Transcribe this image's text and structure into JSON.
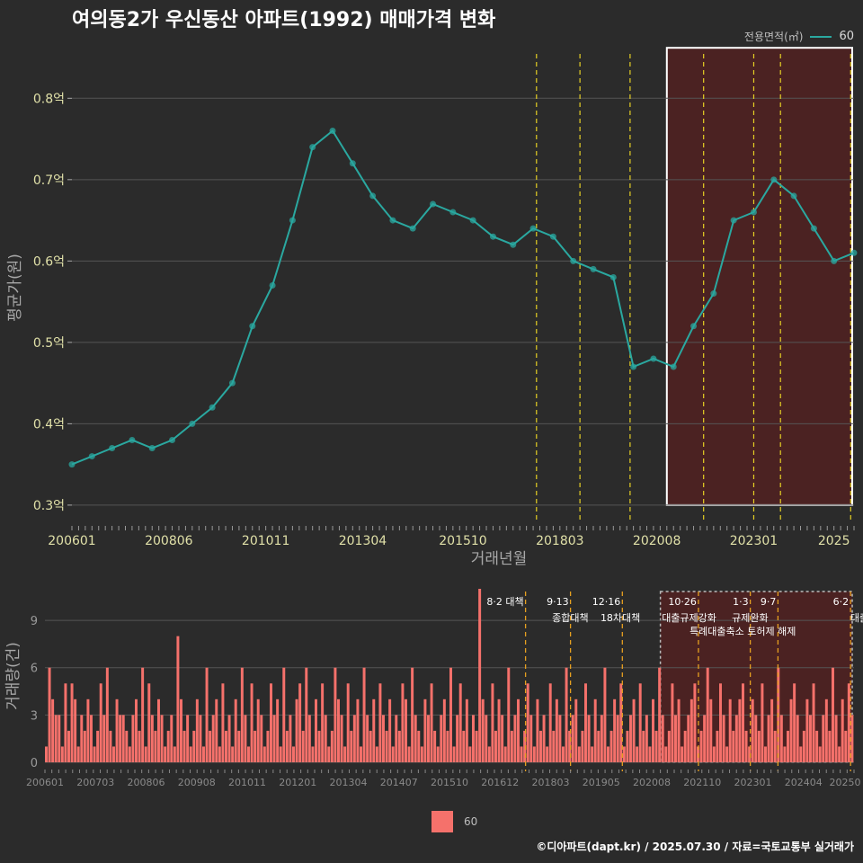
{
  "title": "여의동2가 우신동산 아파트(1992) 매매가격 변화",
  "credit": "©디아파트(dapt.kr) / 2025.07.30 / 자료=국토교통부 실거래가",
  "legend_top": {
    "label": "전용면적(㎡)",
    "series": "60"
  },
  "legend_bottom": {
    "series": "60"
  },
  "colors": {
    "price": "#2aa8a0",
    "volume": "#f5716b",
    "policy": "#e6d024",
    "highlight": "#5a2020"
  },
  "chart_data": [
    {
      "type": "line",
      "name": "price",
      "xlabel": "거래년월",
      "ylabel": "평균가(원)",
      "ylim": [
        0.28,
        0.86
      ],
      "y_ticks": [
        0.3,
        0.4,
        0.5,
        0.6,
        0.7,
        0.8
      ],
      "y_tick_labels": [
        "0.3억",
        "0.4억",
        "0.5억",
        "0.6억",
        "0.7억",
        "0.8억"
      ],
      "x_tick_labels": [
        "200601",
        "200806",
        "201011",
        "201304",
        "201510",
        "201803",
        "202008",
        "202301",
        "2025"
      ],
      "x_range": [
        "2006-01",
        "2025-07"
      ],
      "series": [
        {
          "name": "60",
          "x": [
            "2006-01",
            "2006-07",
            "2007-01",
            "2007-07",
            "2008-01",
            "2008-07",
            "2009-01",
            "2009-07",
            "2010-01",
            "2010-07",
            "2011-01",
            "2011-07",
            "2012-01",
            "2012-07",
            "2013-01",
            "2013-07",
            "2014-01",
            "2014-07",
            "2015-01",
            "2015-07",
            "2016-01",
            "2016-07",
            "2017-01",
            "2017-07",
            "2018-01",
            "2018-07",
            "2019-01",
            "2019-07",
            "2020-01",
            "2020-07",
            "2021-01",
            "2021-07",
            "2022-01",
            "2022-07",
            "2023-01",
            "2023-07",
            "2024-01",
            "2024-07",
            "2025-01",
            "2025-07"
          ],
          "values": [
            0.35,
            0.36,
            0.37,
            0.38,
            0.37,
            0.38,
            0.4,
            0.42,
            0.45,
            0.52,
            0.57,
            0.65,
            0.74,
            0.76,
            0.72,
            0.68,
            0.65,
            0.64,
            0.67,
            0.66,
            0.65,
            0.63,
            0.62,
            0.64,
            0.63,
            0.6,
            0.59,
            0.58,
            0.47,
            0.48,
            0.47,
            0.52,
            0.56,
            0.65,
            0.66,
            0.7,
            0.68,
            0.64,
            0.6,
            0.61
          ]
        }
      ],
      "highlight_range": [
        "2020-11",
        "2025-07"
      ]
    },
    {
      "type": "bar",
      "name": "volume",
      "ylabel": "거래량(건)",
      "ylim": [
        0,
        11
      ],
      "y_ticks": [
        0,
        3,
        6,
        9
      ],
      "y_tick_labels": [
        "0",
        "3",
        "6",
        "9"
      ],
      "x_tick_labels": [
        "200601",
        "200703",
        "200806",
        "200908",
        "201011",
        "201201",
        "201304",
        "201407",
        "201510",
        "201612",
        "201803",
        "201905",
        "202008",
        "202110",
        "202301",
        "202404",
        "20250"
      ],
      "series": [
        {
          "name": "60",
          "values": [
            1,
            6,
            4,
            3,
            3,
            1,
            5,
            2,
            5,
            4,
            1,
            3,
            2,
            4,
            3,
            1,
            2,
            5,
            3,
            6,
            2,
            1,
            4,
            3,
            3,
            2,
            1,
            3,
            4,
            2,
            6,
            1,
            5,
            3,
            2,
            4,
            3,
            1,
            2,
            3,
            1,
            8,
            4,
            2,
            3,
            1,
            2,
            4,
            3,
            1,
            6,
            2,
            3,
            4,
            1,
            5,
            2,
            3,
            1,
            4,
            2,
            6,
            3,
            1,
            5,
            2,
            4,
            3,
            1,
            2,
            5,
            3,
            4,
            1,
            6,
            2,
            3,
            1,
            4,
            5,
            2,
            6,
            3,
            1,
            4,
            2,
            5,
            3,
            1,
            2,
            6,
            4,
            3,
            1,
            5,
            2,
            3,
            4,
            1,
            6,
            3,
            2,
            4,
            1,
            5,
            3,
            2,
            4,
            1,
            3,
            2,
            5,
            4,
            1,
            6,
            3,
            2,
            1,
            4,
            3,
            5,
            2,
            1,
            3,
            4,
            2,
            6,
            1,
            3,
            5,
            2,
            4,
            1,
            3,
            2,
            11,
            4,
            3,
            1,
            5,
            2,
            4,
            3,
            1,
            6,
            2,
            3,
            4,
            1,
            2,
            5,
            3,
            1,
            4,
            2,
            3,
            1,
            5,
            2,
            4,
            3,
            1,
            6,
            2,
            3,
            4,
            1,
            2,
            5,
            3,
            1,
            4,
            2,
            3,
            6,
            1,
            2,
            4,
            3,
            5,
            1,
            2,
            3,
            4,
            1,
            5,
            2,
            3,
            1,
            4,
            2,
            6,
            3,
            1,
            2,
            5,
            3,
            4,
            1,
            2,
            3,
            4,
            5,
            1,
            2,
            3,
            6,
            4,
            1,
            2,
            5,
            3,
            1,
            4,
            2,
            3,
            4,
            5,
            2,
            1,
            4,
            3,
            2,
            5,
            1,
            3,
            4,
            2,
            6,
            3,
            1,
            2,
            4,
            5,
            3,
            1,
            2,
            4,
            3,
            5,
            2,
            1,
            3,
            4,
            2,
            6,
            3,
            1,
            4,
            2,
            5,
            3
          ]
        }
      ],
      "highlight_range": [
        "2020-11",
        "2025-07"
      ]
    }
  ],
  "policies": [
    {
      "date": "2017-08",
      "label": "8·2 대책"
    },
    {
      "date": "2018-09",
      "label": "9·13",
      "label2": "종합대책"
    },
    {
      "date": "2019-12",
      "label": "12·16",
      "label2": "18차대책"
    },
    {
      "date": "2021-10",
      "label": "10·26",
      "label2": "대출규제강화"
    },
    {
      "date": "2023-01",
      "label": "1·3",
      "label2": "규제완화"
    },
    {
      "date": "2023-09",
      "label": "9·7",
      "label2": "특례대출축소 토허제 해제"
    },
    {
      "date": "2025-06",
      "label": "6·2",
      "label2": "대출"
    }
  ]
}
